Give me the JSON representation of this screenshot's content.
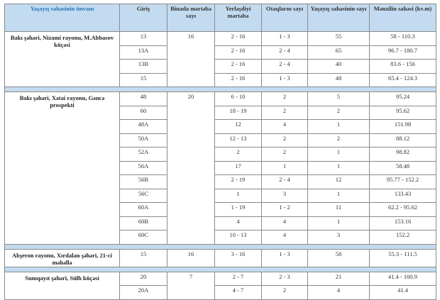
{
  "table": {
    "headers": [
      "Yaşayış sahəsinin ünvanı",
      "Giriş",
      "Binada mərtəbə sayı",
      "Yerləşdiyi mərtəbə",
      "Otaqların sayı",
      "Yaşayış sahəsinin sayı",
      "Mənzilin sahəsi (kv.m)"
    ],
    "header_color": "#c3dbf0",
    "groups": [
      {
        "address": "Bakı şəhəri, Nizami rayonu, M.Abbasov küçəsi",
        "floors": "16",
        "rows": [
          [
            "13",
            "2 - 16",
            "1 - 3",
            "55",
            "58 - 110.3"
          ],
          [
            "13A",
            "2 - 16",
            "2 - 4",
            "65",
            "96.7 - 180.7"
          ],
          [
            "13B",
            "2 - 16",
            "2 - 4",
            "40",
            "83.6 - 156"
          ],
          [
            "15",
            "2 - 16",
            "1 - 3",
            "48",
            "65.4 - 124.3"
          ]
        ]
      },
      {
        "address": "Bakı şəhəri, Xətai rayonu, Gəncə prospekti",
        "floors": "20",
        "rows": [
          [
            "48",
            "6 - 10",
            "2",
            "5",
            "95.24"
          ],
          [
            "60",
            "18 - 19",
            "2",
            "2",
            "95.62"
          ],
          [
            "48A",
            "12",
            "4",
            "1",
            "151.98"
          ],
          [
            "50A",
            "12 - 13",
            "2",
            "2",
            "88.12"
          ],
          [
            "52A",
            "2",
            "2",
            "1",
            "98.82"
          ],
          [
            "56A",
            "17",
            "1",
            "1",
            "58.48"
          ],
          [
            "56B",
            "2 - 19",
            "2 - 4",
            "12",
            "95.77 - 152.2"
          ],
          [
            "56C",
            "1",
            "3",
            "1",
            "133.43"
          ],
          [
            "60A",
            "1 - 19",
            "1 - 2",
            "11",
            "62.2 - 95.62"
          ],
          [
            "60B",
            "4",
            "4",
            "1",
            "153.16"
          ],
          [
            "60C",
            "10 - 13",
            "4",
            "3",
            "152.2"
          ]
        ]
      },
      {
        "address": "Abşeron rayonu, Xırdalan şəhəri, 21-ci məhəllə",
        "floors": "16",
        "rows": [
          [
            "15",
            "3 - 16",
            "1 - 3",
            "58",
            "55.3 - 111.5"
          ]
        ]
      },
      {
        "address": "Sumqayıt şəhəri, Sülh küçəsi",
        "floors": "7",
        "rows": [
          [
            "20",
            "2 - 7",
            "2 - 3",
            "21",
            "41.4 - 100.9"
          ],
          [
            "20A",
            "4 - 7",
            "2",
            "4",
            "41.4"
          ]
        ]
      }
    ]
  }
}
